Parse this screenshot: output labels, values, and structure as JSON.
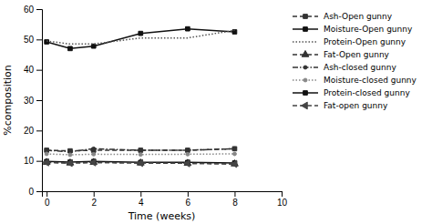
{
  "chart_data": {
    "type": "line",
    "x": [
      0,
      1,
      2,
      4,
      6,
      8
    ],
    "series": [
      {
        "name": "Ash-Open gunny",
        "color": "#333333",
        "values": [
          13.5,
          13.3,
          13.5,
          13.5,
          13.5,
          14.0
        ],
        "line_style": "dashed",
        "marker": "square"
      },
      {
        "name": "Moisture-Open gunny",
        "color": "#111111",
        "values": [
          49.2,
          47.0,
          47.8,
          52.0,
          53.5,
          52.5
        ],
        "line_style": "solid",
        "marker": "square"
      },
      {
        "name": "Protein-Open gunny",
        "color": "#555555",
        "values": [
          49.5,
          48.5,
          48.5,
          50.5,
          50.5,
          53.0
        ],
        "line_style": "dotted",
        "marker": "none"
      },
      {
        "name": "Fat-Open gunny",
        "color": "#333333",
        "values": [
          9.5,
          9.3,
          9.5,
          9.3,
          9.2,
          9.0
        ],
        "line_style": "dashed",
        "marker": "triangle-up"
      },
      {
        "name": "Ash-closed gunny",
        "color": "#333333",
        "values": [
          13.5,
          13.0,
          14.0,
          13.5,
          13.5,
          14.0
        ],
        "line_style": "dashdot",
        "marker": "point"
      },
      {
        "name": "Moisture-closed gunny",
        "color": "#888888",
        "values": [
          12.3,
          12.0,
          12.2,
          12.1,
          12.2,
          12.3
        ],
        "line_style": "dotted",
        "marker": "point"
      },
      {
        "name": "Protein-closed gunny",
        "color": "#111111",
        "values": [
          9.8,
          9.6,
          9.8,
          9.5,
          9.5,
          9.3
        ],
        "line_style": "solid",
        "marker": "square"
      },
      {
        "name": "Fat-open gunny",
        "color": "#444444",
        "values": [
          9.5,
          9.3,
          9.5,
          9.3,
          9.2,
          9.0
        ],
        "line_style": "dashed",
        "marker": "triangle-left"
      }
    ],
    "xlabel": "Time (weeks)",
    "ylabel": "%composition",
    "xlim": [
      -0.2,
      10
    ],
    "ylim": [
      0,
      60
    ],
    "xticks": [
      0,
      2,
      4,
      6,
      8,
      10
    ],
    "yticks": [
      0,
      10,
      20,
      30,
      40,
      50,
      60
    ],
    "grid": false,
    "legend": "right"
  }
}
